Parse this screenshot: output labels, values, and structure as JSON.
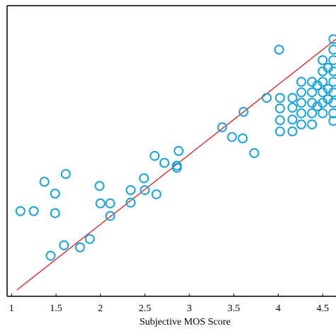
{
  "chart_data": {
    "type": "scatter",
    "x_label": "Subjective MOS Score",
    "xlim": [
      0.95,
      4.65
    ],
    "ylim": [
      0.97,
      5.13
    ],
    "xticks": [
      1,
      1.5,
      2,
      2.5,
      3,
      3.5,
      4,
      4.5
    ],
    "marker_color": "#1aa3d9",
    "fit_color": "#d62020",
    "x": [
      1.1,
      1.25,
      1.37,
      1.61,
      1.49,
      1.49,
      1.44,
      1.59,
      1.77,
      1.88,
      1.99,
      2.0,
      2.11,
      2.11,
      2.34,
      2.34,
      2.49,
      2.5,
      2.63,
      2.61,
      2.72,
      2.86,
      2.86,
      2.88,
      3.37,
      3.48,
      3.6,
      3.61,
      3.73,
      3.87,
      4.01,
      4.02,
      4.02,
      4.02,
      4.02,
      4.16,
      4.16,
      4.16,
      4.16,
      4.26,
      4.26,
      4.26,
      4.26,
      4.26,
      4.38,
      4.38,
      4.38,
      4.38,
      4.38,
      4.5,
      4.5,
      4.5,
      4.5,
      4.5,
      4.5,
      4.62,
      4.62,
      4.62,
      4.62,
      4.62,
      4.62,
      4.62,
      4.62,
      4.62,
      4.56,
      4.56,
      4.56,
      4.44,
      4.44
    ],
    "y": [
      2.19,
      2.19,
      2.61,
      2.72,
      2.44,
      2.16,
      1.55,
      1.7,
      1.67,
      1.79,
      2.55,
      2.3,
      2.3,
      2.12,
      2.49,
      2.31,
      2.66,
      2.49,
      2.43,
      2.98,
      2.88,
      2.84,
      2.81,
      3.05,
      3.39,
      3.25,
      3.23,
      3.61,
      3.02,
      3.81,
      4.5,
      3.81,
      3.66,
      3.49,
      3.33,
      3.81,
      3.67,
      3.5,
      3.33,
      4.04,
      3.89,
      3.74,
      3.59,
      3.43,
      4.04,
      3.89,
      3.74,
      3.59,
      3.43,
      4.35,
      4.19,
      4.04,
      3.89,
      3.74,
      3.59,
      4.65,
      4.5,
      4.35,
      4.19,
      4.04,
      3.89,
      3.74,
      3.59,
      3.48,
      4.24,
      3.94,
      3.79,
      3.99,
      3.69
    ],
    "fit_line": {
      "x": [
        1.06,
        4.65
      ],
      "y": [
        1.06,
        4.65
      ]
    }
  }
}
